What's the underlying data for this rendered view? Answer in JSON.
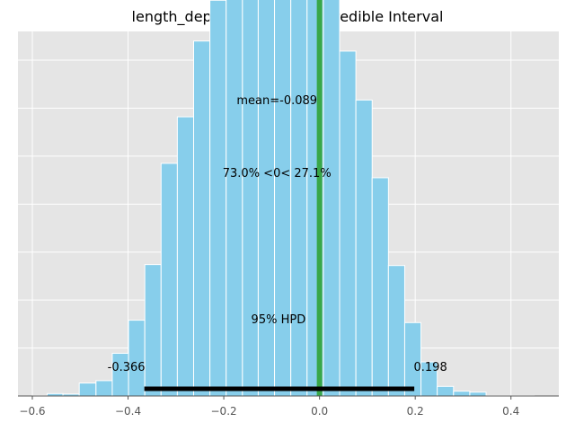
{
  "chart_data": {
    "type": "bar",
    "title": "length_depth_width - 95% Credible Interval",
    "xlabel": "",
    "ylabel": "",
    "xlim": [
      -0.63,
      0.5
    ],
    "ylim": [
      0,
      760
    ],
    "x_ticks": [
      -0.6,
      -0.4,
      -0.2,
      0.0,
      0.2,
      0.4
    ],
    "x_tick_labels": [
      "−0.6",
      "−0.4",
      "−0.2",
      "0.0",
      "0.2",
      "0.4"
    ],
    "y_grid": [
      100,
      200,
      300,
      400,
      500,
      600,
      700
    ],
    "grid": true,
    "histogram": {
      "bin_edges": [
        -0.599,
        -0.569,
        -0.536,
        -0.502,
        -0.467,
        -0.433,
        -0.399,
        -0.365,
        -0.331,
        -0.297,
        -0.263,
        -0.229,
        -0.195,
        -0.161,
        -0.128,
        -0.094,
        -0.06,
        -0.026,
        0.008,
        0.042,
        0.076,
        0.11,
        0.144,
        0.178,
        0.212,
        0.246,
        0.28,
        0.314,
        0.348,
        0.381,
        0.415,
        0.449
      ],
      "counts": [
        1,
        5,
        4,
        27,
        32,
        89,
        158,
        274,
        485,
        582,
        740,
        825,
        893,
        960,
        922,
        1041,
        1092,
        941,
        832,
        719,
        617,
        455,
        272,
        153,
        71,
        20,
        10,
        8,
        1,
        1,
        1
      ],
      "color": "#87ceeb"
    },
    "mean": {
      "value": -0.089,
      "label": "mean=-0.089",
      "count_level": 920
    },
    "reference": {
      "value": 0.0,
      "color": "#2ca02c",
      "pct_below": "73.0%",
      "pct_above": "27.1%",
      "label": "73.0% <0< 27.1%"
    },
    "hpd": {
      "low": -0.366,
      "high": 0.198,
      "label": "95% HPD",
      "low_label": "-0.366",
      "high_label": "0.198",
      "color": "#000000"
    },
    "background_color": "#e5e5e5",
    "grid_color": "#ffffff"
  }
}
